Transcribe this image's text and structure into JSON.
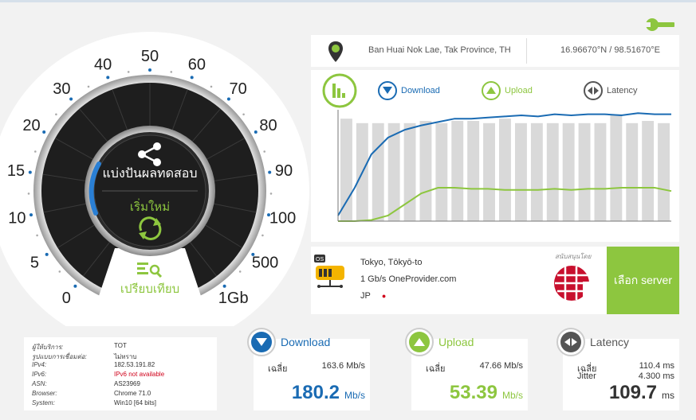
{
  "location": {
    "place": "Ban Huai Nok Lae, Tak Province, TH",
    "coords": "16.96670°N / 98.51670°E"
  },
  "legend": {
    "download": "Download",
    "upload": "Upload",
    "latency": "Latency"
  },
  "colors": {
    "download": "#1a6bb3",
    "upload": "#8dc63f",
    "latency": "#555555",
    "bar": "#d9d9d9"
  },
  "gauge": {
    "ticks": [
      "0",
      "5",
      "10",
      "15",
      "20",
      "30",
      "40",
      "50",
      "60",
      "70",
      "80",
      "90",
      "100",
      "500",
      "1Gb"
    ],
    "share_label": "แบ่งปันผลทดสอบ",
    "restart_label": "เริ่มใหม่",
    "compare_label": "เปรียบเทียบ"
  },
  "server": {
    "city": "Tokyo, Tōkyō-to",
    "provider": "1 Gb/s OneProvider.com",
    "country": "JP",
    "sponsor_label": "สนับสนุนโดย",
    "select_label": "เลือก server"
  },
  "info": {
    "rows": [
      {
        "key": "ผู้ให้บริการ:",
        "value": "TOT",
        "warn": false
      },
      {
        "key": "รูปแบบการเชื่อมต่อ:",
        "value": "ไม่ทราบ",
        "warn": false
      },
      {
        "key": "IPv4:",
        "value": "182.53.191.82",
        "warn": false
      },
      {
        "key": "IPv6:",
        "value": "IPv6 not available",
        "warn": true
      },
      {
        "key": "ASN:",
        "value": "AS23969",
        "warn": false
      },
      {
        "key": "Browser:",
        "value": "Chrome 71.0",
        "warn": false
      },
      {
        "key": "System:",
        "value": "Win10 [64 bits]",
        "warn": false
      }
    ]
  },
  "results": {
    "download": {
      "title": "Download",
      "avg_label": "เฉลี่ย",
      "avg_value": "163.6 Mb/s",
      "value": "180.2",
      "unit": "Mb/s"
    },
    "upload": {
      "title": "Upload",
      "avg_label": "เฉลี่ย",
      "avg_value": "47.66 Mb/s",
      "value": "53.39",
      "unit": "Mb/s"
    },
    "latency": {
      "title": "Latency",
      "avg_label": "เฉลี่ย",
      "avg_value": "110.4 ms",
      "jitter_label": "Jitter",
      "jitter_value": "4.300 ms",
      "value": "109.7",
      "unit": "ms"
    }
  },
  "chart_data": {
    "type": "line",
    "bars": [
      0.92,
      0.88,
      0.88,
      0.88,
      0.88,
      0.9,
      0.88,
      0.9,
      0.9,
      0.88,
      0.92,
      0.88,
      0.88,
      0.88,
      0.88,
      0.88,
      0.88,
      0.96,
      0.88,
      0.9,
      0.88
    ],
    "series": [
      {
        "values": [
          0.05,
          0.3,
          0.6,
          0.75,
          0.82,
          0.86,
          0.89,
          0.92,
          0.92,
          0.93,
          0.94,
          0.95,
          0.94,
          0.96,
          0.95,
          0.96,
          0.96,
          0.95,
          0.97,
          0.96,
          0.96
        ]
      },
      {
        "values": [
          0.0,
          0.0,
          0.01,
          0.05,
          0.15,
          0.25,
          0.3,
          0.3,
          0.29,
          0.29,
          0.28,
          0.28,
          0.28,
          0.29,
          0.28,
          0.29,
          0.29,
          0.3,
          0.3,
          0.3,
          0.27
        ]
      }
    ]
  }
}
